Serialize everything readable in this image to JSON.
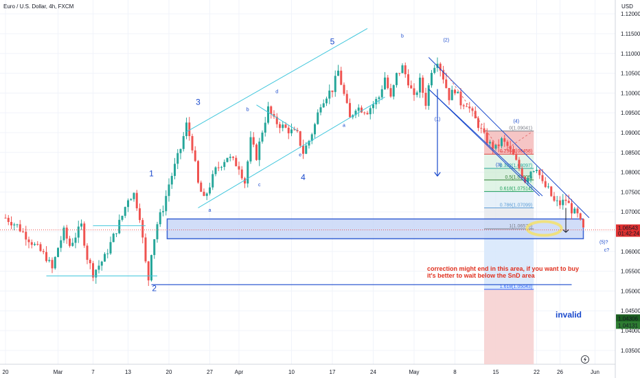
{
  "chart_data": {
    "type": "candlestick",
    "title": "Euro / U.S. Dollar, 4h, FXCM",
    "currency": "USD",
    "y_ticks": [
      1.12,
      1.115,
      1.11,
      1.105,
      1.1,
      1.095,
      1.09,
      1.085,
      1.08,
      1.075,
      1.07,
      1.065,
      1.06,
      1.055,
      1.05,
      1.045,
      1.04,
      1.035
    ],
    "y_tick_labels": [
      "1.12000",
      "1.11500",
      "1.11000",
      "1.10500",
      "1.10000",
      "1.09500",
      "1.09000",
      "1.08500",
      "1.08000",
      "1.07500",
      "1.07000",
      "1.06500",
      "1.06000",
      "1.05500",
      "1.05000",
      "1.04500",
      "1.04000",
      "1.03500"
    ],
    "ylim": [
      1.0315,
      1.1235
    ],
    "x_ticks": [
      {
        "label": "20",
        "day": 0
      },
      {
        "label": "Mar",
        "day": 9
      },
      {
        "label": "7",
        "day": 15
      },
      {
        "label": "13",
        "day": 21
      },
      {
        "label": "20",
        "day": 28
      },
      {
        "label": "27",
        "day": 35
      },
      {
        "label": "Apr",
        "day": 40
      },
      {
        "label": "10",
        "day": 49
      },
      {
        "label": "17",
        "day": 56
      },
      {
        "label": "24",
        "day": 63
      },
      {
        "label": "May",
        "day": 70
      },
      {
        "label": "8",
        "day": 77
      },
      {
        "label": "15",
        "day": 84
      },
      {
        "label": "22",
        "day": 91
      },
      {
        "label": "26",
        "day": 95
      },
      {
        "label": "Jun",
        "day": 101
      }
    ],
    "xlim": [
      0,
      104
    ],
    "price_path": [
      [
        0,
        1.0685
      ],
      [
        2,
        1.0665
      ],
      [
        5,
        1.0615
      ],
      [
        7,
        1.0585
      ],
      [
        8,
        1.0555
      ],
      [
        9,
        1.061
      ],
      [
        10,
        1.065
      ],
      [
        11,
        1.0615
      ],
      [
        13,
        1.0665
      ],
      [
        14,
        1.0585
      ],
      [
        15,
        1.0545
      ],
      [
        17,
        1.0585
      ],
      [
        19,
        1.0655
      ],
      [
        20,
        1.069
      ],
      [
        21,
        1.0735
      ],
      [
        22,
        1.0745
      ],
      [
        23,
        1.069
      ],
      [
        24,
        1.057
      ],
      [
        24.5,
        1.053
      ],
      [
        25,
        1.06
      ],
      [
        26,
        1.067
      ],
      [
        27,
        1.071
      ],
      [
        28,
        1.077
      ],
      [
        30,
        1.086
      ],
      [
        31,
        1.092
      ],
      [
        32,
        1.0865
      ],
      [
        33,
        1.077
      ],
      [
        34,
        1.073
      ],
      [
        36,
        1.0805
      ],
      [
        38,
        1.084
      ],
      [
        40,
        1.0815
      ],
      [
        41,
        1.0775
      ],
      [
        42,
        1.088
      ],
      [
        43,
        1.084
      ],
      [
        44,
        1.0905
      ],
      [
        45,
        1.096
      ],
      [
        46,
        1.093
      ],
      [
        48,
        1.091
      ],
      [
        50,
        1.0895
      ],
      [
        51,
        1.085
      ],
      [
        52,
        1.088
      ],
      [
        53,
        1.092
      ],
      [
        54,
        1.0975
      ],
      [
        55,
        1.0995
      ],
      [
        56,
        1.101
      ],
      [
        57,
        1.1055
      ],
      [
        58,
        1.0995
      ],
      [
        59,
        1.0935
      ],
      [
        60,
        1.0965
      ],
      [
        62,
        1.0955
      ],
      [
        64,
        1.099
      ],
      [
        65,
        1.104
      ],
      [
        66,
        1.0985
      ],
      [
        67,
        1.1045
      ],
      [
        68,
        1.1065
      ],
      [
        69,
        1.103
      ],
      [
        70,
        1.0985
      ],
      [
        71,
        1.103
      ],
      [
        72,
        1.0975
      ],
      [
        73,
        1.106
      ],
      [
        74,
        1.1085
      ],
      [
        75,
        1.104
      ],
      [
        76,
        1.099
      ],
      [
        77,
        1.101
      ],
      [
        78,
        1.0975
      ],
      [
        79,
        1.0975
      ],
      [
        80,
        1.0945
      ],
      [
        81,
        1.092
      ],
      [
        82,
        1.089
      ],
      [
        83,
        1.087
      ],
      [
        84,
        1.086
      ],
      [
        85,
        1.088
      ],
      [
        86,
        1.0865
      ],
      [
        87,
        1.084
      ],
      [
        88,
        1.081
      ],
      [
        89,
        1.078
      ],
      [
        90,
        1.0805
      ],
      [
        91,
        1.0815
      ],
      [
        92,
        1.077
      ],
      [
        93,
        1.0755
      ],
      [
        94,
        1.0725
      ],
      [
        95,
        1.072
      ],
      [
        96,
        1.073
      ],
      [
        97,
        1.0705
      ],
      [
        98,
        1.069
      ],
      [
        99,
        1.0654
      ]
    ],
    "fib_levels": [
      {
        "ratio_label": "0(1.09041)",
        "price": 1.09041,
        "color": "#787b86"
      },
      {
        "ratio_label": "0.236(1.08458)",
        "price": 1.08458,
        "color": "#e03131"
      },
      {
        "ratio_label": "0.382(1.08097)",
        "price": 1.08097,
        "color": "#26a69a"
      },
      {
        "ratio_label": "0.5(1.07805)",
        "price": 1.07805,
        "color": "#2e7d32"
      },
      {
        "ratio_label": "0.618(1.07514)",
        "price": 1.07514,
        "color": "#1b9e5a"
      },
      {
        "ratio_label": "0.786(1.07099)",
        "price": 1.07099,
        "color": "#5b9bd5"
      },
      {
        "ratio_label": "1(1.06570)",
        "price": 1.0657,
        "color": "#787b86"
      },
      {
        "ratio_label": "1.618(1.05043)",
        "price": 1.05043,
        "color": "#2962ff"
      }
    ],
    "wave_labels": [
      {
        "text": "1",
        "day": 25,
        "price": 1.079,
        "size": 12
      },
      {
        "text": "2",
        "day": 25.5,
        "price": 1.05,
        "size": 12
      },
      {
        "text": "3",
        "day": 33,
        "price": 1.097,
        "size": 12
      },
      {
        "text": "4",
        "day": 51,
        "price": 1.078,
        "size": 12
      },
      {
        "text": "5",
        "day": 56,
        "price": 1.1123,
        "size": 12
      },
      {
        "text": "a",
        "day": 35,
        "price": 1.07,
        "size": 7
      },
      {
        "text": "b",
        "day": 41.5,
        "price": 1.0955,
        "size": 7
      },
      {
        "text": "c",
        "day": 43.5,
        "price": 1.0765,
        "size": 7
      },
      {
        "text": "d",
        "day": 46.5,
        "price": 1.1,
        "size": 7
      },
      {
        "text": "e",
        "day": 50.5,
        "price": 1.084,
        "size": 7
      },
      {
        "text": "a",
        "day": 58,
        "price": 1.0915,
        "size": 7
      },
      {
        "text": "b",
        "day": 68,
        "price": 1.114,
        "size": 7
      },
      {
        "text": "(1)",
        "day": 74,
        "price": 1.093,
        "size": 7
      },
      {
        "text": "(2)",
        "day": 75.5,
        "price": 1.113,
        "size": 7
      },
      {
        "text": "(3)",
        "day": 84.5,
        "price": 1.0815,
        "size": 7
      },
      {
        "text": "(4)",
        "day": 87.5,
        "price": 1.0925,
        "size": 7
      },
      {
        "text": "(5)?",
        "day": 102.5,
        "price": 1.062,
        "size": 7
      },
      {
        "text": "c?",
        "day": 103,
        "price": 1.06,
        "size": 7
      }
    ],
    "annotations": [
      "correction might end in this area, if you want to buy",
      "it's better to wait below the SnD area",
      "invalid"
    ],
    "current_price_tag": {
      "price": "1.06543",
      "countdown": "01:42:24",
      "color": "#e03131",
      "value": 1.06543
    },
    "bottom_tags": [
      {
        "text": "1.04306",
        "value": 1.04306,
        "color": "#1b5e20"
      },
      {
        "text": "1.04131",
        "value": 1.04131,
        "color": "#2e7d32"
      }
    ],
    "grid": true
  }
}
